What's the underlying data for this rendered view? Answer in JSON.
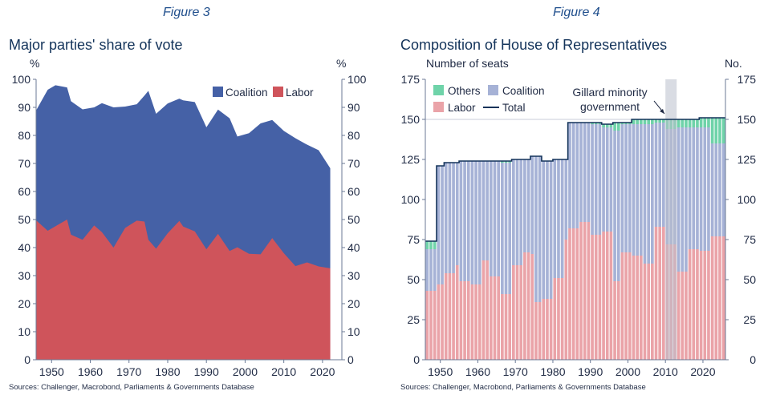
{
  "chart_data": [
    {
      "type": "area",
      "figure_label": "Figure 3",
      "title": "Major parties' share of vote",
      "left_unit": "%",
      "right_unit": "%",
      "xlim": [
        1946,
        2025
      ],
      "ylim": [
        0,
        100
      ],
      "x_ticks": [
        1950,
        1960,
        1970,
        1980,
        1990,
        2000,
        2010,
        2020
      ],
      "y_ticks": [
        0,
        10,
        20,
        30,
        40,
        50,
        60,
        70,
        80,
        90,
        100
      ],
      "legend": [
        "Coalition",
        "Labor"
      ],
      "colors": {
        "Coalition": "#4561a6",
        "Labor": "#cf545b"
      },
      "series": [
        {
          "name": "Labor",
          "x": [
            1946,
            1949,
            1951,
            1954,
            1955,
            1958,
            1961,
            1963,
            1966,
            1969,
            1972,
            1974,
            1975,
            1977,
            1980,
            1983,
            1984,
            1987,
            1990,
            1993,
            1996,
            1998,
            2001,
            2004,
            2007,
            2010,
            2013,
            2016,
            2019,
            2022
          ],
          "values": [
            49.7,
            46.0,
            47.6,
            50.0,
            44.6,
            42.8,
            47.9,
            45.5,
            40.0,
            47.0,
            49.6,
            49.3,
            42.8,
            39.6,
            45.1,
            49.5,
            47.5,
            45.8,
            39.4,
            44.9,
            38.8,
            40.1,
            37.8,
            37.6,
            43.4,
            38.0,
            33.4,
            34.7,
            33.3,
            32.6
          ]
        },
        {
          "name": "Coalition",
          "x": [
            1946,
            1949,
            1951,
            1954,
            1955,
            1958,
            1961,
            1963,
            1966,
            1969,
            1972,
            1974,
            1975,
            1977,
            1980,
            1983,
            1984,
            1987,
            1990,
            1993,
            1996,
            1998,
            2001,
            2004,
            2007,
            2010,
            2013,
            2016,
            2019,
            2022
          ],
          "values": [
            39.2,
            50.3,
            50.3,
            47.1,
            47.6,
            46.5,
            42.1,
            46.0,
            50.0,
            43.3,
            41.5,
            44.9,
            53.1,
            48.1,
            46.3,
            43.6,
            45.0,
            46.1,
            43.5,
            44.3,
            47.3,
            39.5,
            43.0,
            46.7,
            42.1,
            43.6,
            45.6,
            42.0,
            41.4,
            35.7
          ]
        }
      ],
      "source": "Sources: Challenger, Macrobond, Parliaments & Governments Database"
    },
    {
      "type": "bar",
      "figure_label": "Figure 4",
      "title": "Composition of House of Representatives",
      "left_unit": "Number of seats",
      "right_unit": "No.",
      "xlim": [
        1946,
        2026
      ],
      "ylim": [
        0,
        175
      ],
      "x_ticks": [
        1950,
        1960,
        1970,
        1980,
        1990,
        2000,
        2010,
        2020
      ],
      "y_ticks": [
        0,
        25,
        50,
        75,
        100,
        125,
        150,
        175
      ],
      "legend": [
        "Others",
        "Coalition",
        "Labor",
        "Total"
      ],
      "colors": {
        "Others": "#6fd3a9",
        "Coalition": "#a6b2d6",
        "Labor": "#eaa3a8",
        "Total": "#13335a",
        "Shade": "#b9bfcc"
      },
      "annotation": {
        "lines": [
          "Gillard minority",
          "government"
        ],
        "shade_from": 2010,
        "shade_to": 2013
      },
      "series": [
        {
          "name": "Labor",
          "x": [
            1946,
            1949,
            1951,
            1954,
            1955,
            1958,
            1961,
            1963,
            1966,
            1969,
            1972,
            1974,
            1975,
            1977,
            1980,
            1983,
            1984,
            1987,
            1990,
            1993,
            1996,
            1998,
            2001,
            2004,
            2007,
            2010,
            2013,
            2016,
            2019,
            2022
          ],
          "values": [
            43,
            47,
            54,
            59,
            49,
            47,
            62,
            52,
            41,
            59,
            67,
            66,
            36,
            38,
            51,
            75,
            82,
            86,
            78,
            80,
            49,
            67,
            65,
            60,
            83,
            72,
            55,
            69,
            68,
            77
          ]
        },
        {
          "name": "Coalition",
          "x": [
            1946,
            1949,
            1951,
            1954,
            1955,
            1958,
            1961,
            1963,
            1966,
            1969,
            1972,
            1974,
            1975,
            1977,
            1980,
            1983,
            1984,
            1987,
            1990,
            1993,
            1996,
            1998,
            2001,
            2004,
            2007,
            2010,
            2013,
            2016,
            2019,
            2022
          ],
          "values": [
            26,
            74,
            69,
            64,
            75,
            77,
            62,
            72,
            82,
            66,
            58,
            61,
            91,
            86,
            74,
            50,
            66,
            62,
            69,
            65,
            94,
            80,
            82,
            87,
            65,
            72,
            90,
            76,
            77,
            58
          ]
        },
        {
          "name": "Others",
          "x": [
            1946,
            1949,
            1951,
            1954,
            1955,
            1958,
            1961,
            1963,
            1966,
            1969,
            1972,
            1974,
            1975,
            1977,
            1980,
            1983,
            1984,
            1987,
            1990,
            1993,
            1996,
            1998,
            2001,
            2004,
            2007,
            2010,
            2013,
            2016,
            2019,
            2022
          ],
          "values": [
            5,
            0,
            0,
            0,
            0,
            0,
            0,
            0,
            1,
            0,
            0,
            0,
            0,
            0,
            0,
            0,
            0,
            0,
            1,
            2,
            5,
            1,
            3,
            3,
            2,
            6,
            5,
            5,
            6,
            16
          ]
        },
        {
          "name": "Total",
          "x": [
            1946,
            1949,
            1951,
            1954,
            1955,
            1958,
            1961,
            1963,
            1966,
            1969,
            1972,
            1974,
            1975,
            1977,
            1980,
            1983,
            1984,
            1987,
            1990,
            1993,
            1996,
            1998,
            2001,
            2004,
            2007,
            2010,
            2013,
            2016,
            2019,
            2022
          ],
          "values": [
            74,
            121,
            123,
            123,
            124,
            124,
            124,
            124,
            124,
            125,
            125,
            127,
            127,
            124,
            125,
            125,
            148,
            148,
            148,
            147,
            148,
            148,
            150,
            150,
            150,
            150,
            150,
            150,
            151,
            151
          ]
        }
      ],
      "source": "Sources: Challenger, Macrobond, Parliaments & Governments Database"
    }
  ]
}
